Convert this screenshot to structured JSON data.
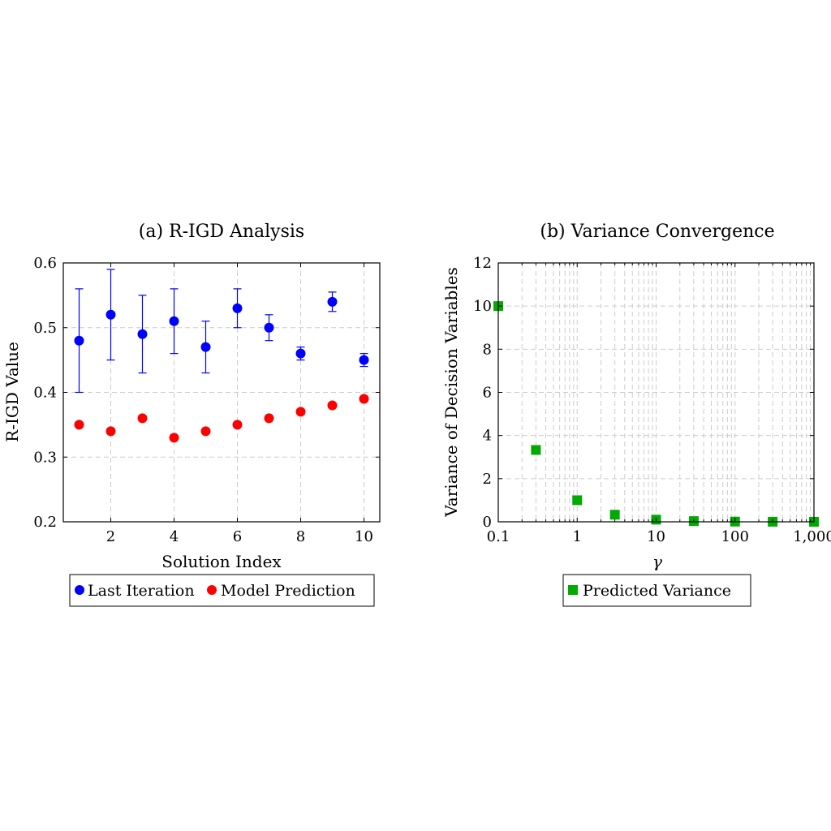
{
  "chart_data": [
    {
      "type": "scatter",
      "title": "(a) R-IGD Analysis",
      "xlabel": "Solution Index",
      "ylabel": "R-IGD Value",
      "xlim": [
        0.5,
        10.5
      ],
      "ylim": [
        0.2,
        0.6
      ],
      "xticks": [
        2,
        4,
        6,
        8,
        10
      ],
      "yticks": [
        0.2,
        0.3,
        0.4,
        0.5,
        0.6
      ],
      "xtick_labels": [
        "2",
        "4",
        "6",
        "8",
        "10"
      ],
      "ytick_labels": [
        "0.2",
        "0.3",
        "0.4",
        "0.5",
        "0.6"
      ],
      "grid": true,
      "legend_placement": "below",
      "series": [
        {
          "name": "Last Iteration",
          "color": "#0000ff",
          "x": [
            1,
            2,
            3,
            4,
            5,
            6,
            7,
            8,
            9,
            10
          ],
          "y": [
            0.48,
            0.52,
            0.49,
            0.51,
            0.47,
            0.53,
            0.5,
            0.46,
            0.54,
            0.45
          ],
          "error": [
            0.08,
            0.07,
            0.06,
            0.05,
            0.04,
            0.03,
            0.02,
            0.01,
            0.015,
            0.01
          ]
        },
        {
          "name": "Model Prediction",
          "color": "#ff0000",
          "x": [
            1,
            2,
            3,
            4,
            5,
            6,
            7,
            8,
            9,
            10
          ],
          "y": [
            0.35,
            0.34,
            0.36,
            0.33,
            0.34,
            0.35,
            0.36,
            0.37,
            0.38,
            0.39
          ]
        }
      ]
    },
    {
      "type": "scatter",
      "title": "(b) Variance Convergence",
      "xlabel": "γ",
      "ylabel": "Variance of Decision Variables",
      "xscale": "log",
      "xlim": [
        0.1,
        1000
      ],
      "ylim": [
        0,
        12
      ],
      "xticks": [
        0.1,
        1,
        10,
        100,
        1000
      ],
      "yticks": [
        0,
        2,
        4,
        6,
        8,
        10,
        12
      ],
      "xtick_labels": [
        "0.1",
        "1",
        "10",
        "100",
        "1,000"
      ],
      "ytick_labels": [
        "0",
        "2",
        "4",
        "6",
        "8",
        "10",
        "12"
      ],
      "grid": true,
      "legend_placement": "below",
      "series": [
        {
          "name": "Predicted Variance",
          "color": "#00aa00",
          "marker": "square",
          "x": [
            0.1,
            0.3,
            1,
            3,
            10,
            30,
            100,
            300,
            1000
          ],
          "y": [
            10,
            3.33,
            1,
            0.33,
            0.1,
            0.033,
            0.01,
            0.0033,
            0.001
          ]
        }
      ]
    }
  ]
}
